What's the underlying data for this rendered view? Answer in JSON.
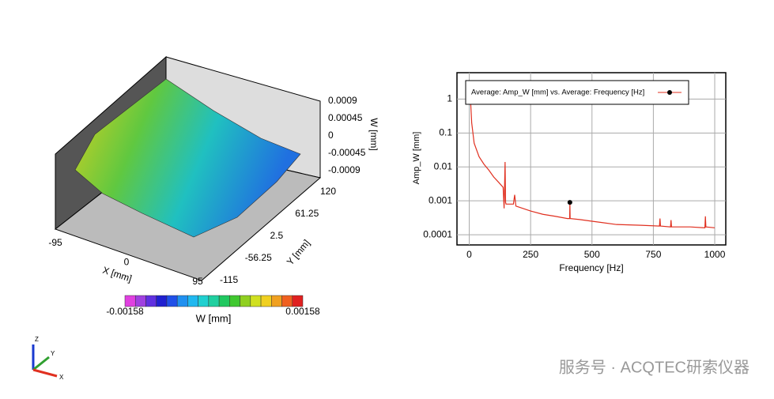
{
  "chart_data": [
    {
      "type": "surface",
      "x_label": "X [mm]",
      "y_label": "Y [mm]",
      "z_label": "W [mm]",
      "xlim": [
        -95,
        95
      ],
      "xticks": [
        -95,
        0,
        95
      ],
      "ylim": [
        -115,
        120
      ],
      "yticks": [
        -115,
        -56.25,
        2.5,
        61.25,
        120
      ],
      "zlim": [
        -0.0009,
        0.0009
      ],
      "zticks": [
        -0.0009,
        -0.00045,
        0,
        0.00045,
        0.0009
      ],
      "colorbar": {
        "label": "W [mm]",
        "min": -0.00158,
        "max": 0.00158,
        "colors": [
          "#e040e0",
          "#a040e0",
          "#6030e0",
          "#2020d0",
          "#2050e8",
          "#2090f0",
          "#20b8f0",
          "#20d0d0",
          "#20d0a0",
          "#20c860",
          "#40c830",
          "#90d020",
          "#d0e020",
          "#f0d020",
          "#f0a020",
          "#f06020",
          "#e02020"
        ]
      },
      "triad": [
        "Z",
        "Y",
        "X"
      ]
    },
    {
      "type": "line",
      "log_y": true,
      "grid": true,
      "x_label": "Frequency [Hz]",
      "y_label": "Amp_W [mm]",
      "xlim": [
        -50,
        1045
      ],
      "xticks": [
        0,
        250,
        500,
        750,
        1000
      ],
      "ylim": [
        5e-05,
        6
      ],
      "yticks": [
        0.0001,
        0.001,
        0.01,
        0.1,
        1
      ],
      "series": [
        {
          "name": "Average: Amp_W [mm] vs. Average: Frequency [Hz]",
          "color": "#e03020",
          "x": [
            0,
            5,
            10,
            20,
            40,
            60,
            80,
            100,
            120,
            138,
            142,
            146,
            148,
            150,
            180,
            185,
            190,
            250,
            300,
            350,
            400,
            409,
            410,
            411,
            450,
            500,
            600,
            700,
            775,
            777,
            779,
            820,
            822,
            824,
            900,
            960,
            962,
            964,
            1000
          ],
          "values": [
            3,
            1,
            0.2,
            0.05,
            0.02,
            0.012,
            0.008,
            0.005,
            0.0035,
            0.0025,
            0.0006,
            0.014,
            0.0009,
            0.0008,
            0.0008,
            0.0015,
            0.0007,
            0.0005,
            0.0004,
            0.00035,
            0.0003,
            0.0003,
            0.0009,
            0.0003,
            0.00028,
            0.00025,
            0.0002,
            0.00019,
            0.00018,
            0.0003,
            0.00018,
            0.00017,
            0.00027,
            0.00017,
            0.00017,
            0.00016,
            0.00035,
            0.00017,
            0.00016
          ]
        }
      ],
      "point": {
        "x": 410,
        "y": 0.0009
      }
    }
  ],
  "watermark": "服务号 · ACQTEC研索仪器"
}
